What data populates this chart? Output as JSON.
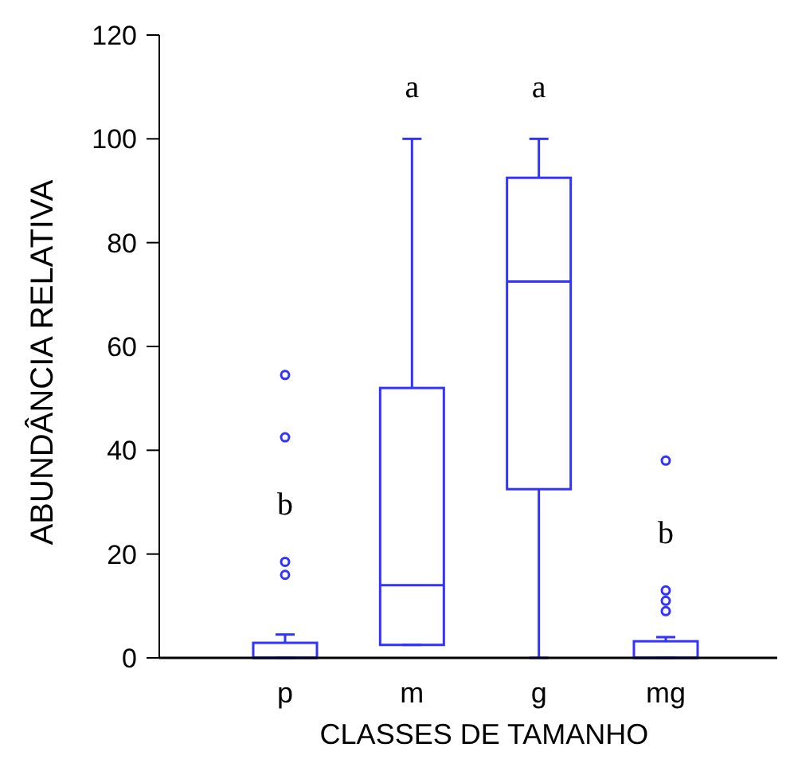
{
  "chart_data": {
    "type": "box",
    "xlabel": "CLASSES DE TAMANHO",
    "ylabel": "ABUNDÂNCIA RELATIVA",
    "categories": [
      "p",
      "m",
      "g",
      "mg"
    ],
    "color": "#3333ff",
    "boxes": [
      {
        "low": 0,
        "q1": 0,
        "median": 0,
        "q3": 2.9,
        "high": 4.5,
        "outliers": [
          54.5,
          42.5,
          18.5,
          16
        ]
      },
      {
        "low": 2.5,
        "q1": 2.5,
        "median": 14,
        "q3": 52,
        "high": 100
      },
      {
        "low": 0,
        "q1": 32.5,
        "median": 72.5,
        "q3": 92.5,
        "high": 100
      },
      {
        "low": 0,
        "q1": 0,
        "median": 0,
        "q3": 3.2,
        "high": 4,
        "outliers": [
          38,
          13,
          11,
          9
        ]
      }
    ],
    "ylim": [
      0,
      120
    ],
    "yticks": [
      0,
      20,
      40,
      60,
      80,
      100,
      120
    ],
    "annotations": [
      "b",
      "a",
      "a",
      "b"
    ]
  }
}
